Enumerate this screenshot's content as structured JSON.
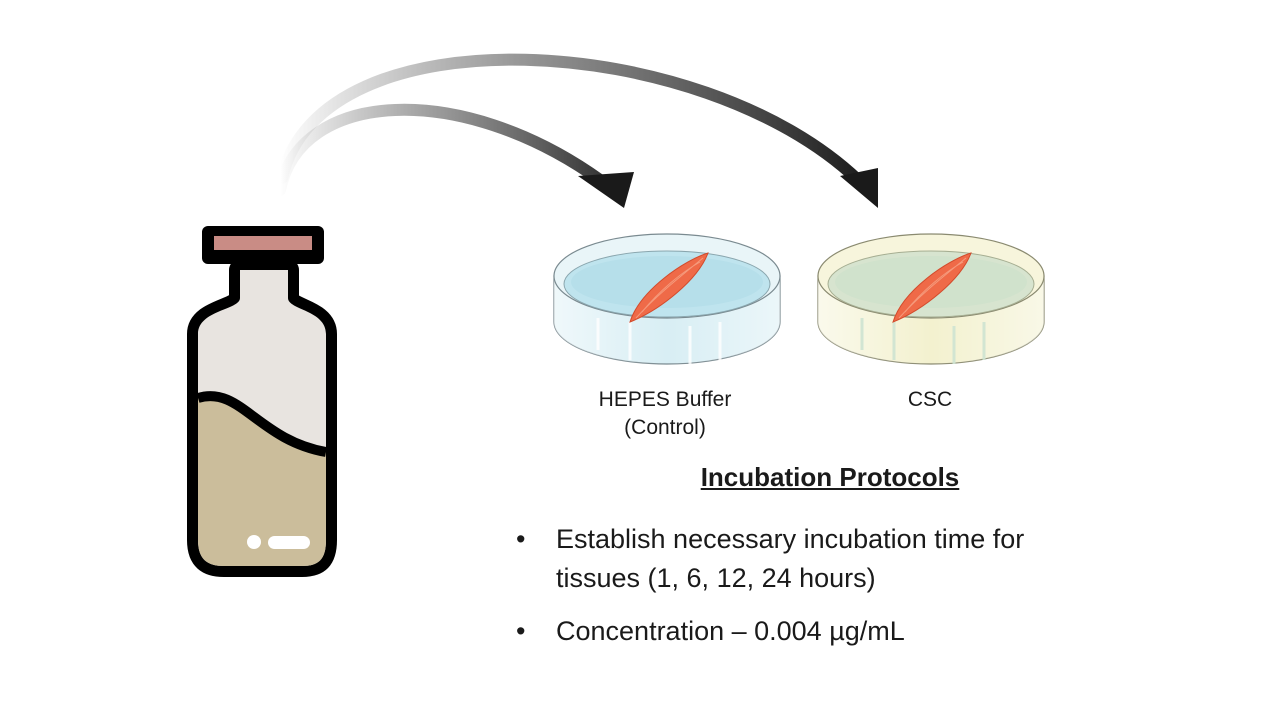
{
  "dishes": [
    {
      "label_line1": "HEPES Buffer",
      "label_line2": "(Control)",
      "liquid_color": "#bfe4ee",
      "rim_color": "#d8eef4"
    },
    {
      "label_line1": "CSC",
      "label_line2": "",
      "liquid_color": "#d7e4cf",
      "rim_color": "#f3f1cf"
    }
  ],
  "vial": {
    "liquid_color": "#cbbd9b",
    "glass_color": "#e8e4e0",
    "cap_band_color": "#c98c85"
  },
  "tissue_color": "#ef6a48",
  "protocol": {
    "heading": "Incubation Protocols",
    "bullets": [
      {
        "symbol": "•",
        "lines": [
          "Establish necessary incubation time for",
          "tissues (1, 6, 12, 24 hours)"
        ]
      },
      {
        "symbol": "•",
        "lines": [
          "Concentration – 0.004 µg/mL"
        ]
      }
    ]
  }
}
